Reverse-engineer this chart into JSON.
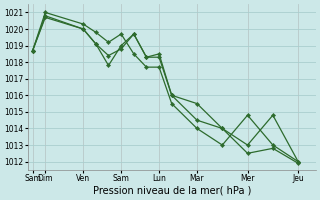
{
  "xlabel": "Pression niveau de la mer( hPa )",
  "bg_color": "#cce8e8",
  "grid_color": "#aacece",
  "line_color": "#2d6b2d",
  "marker_color": "#2d6b2d",
  "ylim": [
    1011.5,
    1021.5
  ],
  "ytick_values": [
    1012,
    1013,
    1014,
    1015,
    1016,
    1017,
    1018,
    1019,
    1020,
    1021
  ],
  "xtick_positions": [
    0.0,
    0.5,
    2.0,
    3.5,
    5.0,
    6.5,
    8.5,
    10.5
  ],
  "xtick_labels": [
    "Sam",
    "Dim",
    "Ven",
    "Sam",
    "Lun",
    "Mar",
    "Mer",
    "Jeu"
  ],
  "xlim": [
    -0.2,
    11.2
  ],
  "series": [
    {
      "x": [
        0.0,
        0.5,
        2.0,
        2.5,
        3.0,
        3.5,
        4.0,
        4.5,
        5.0,
        5.5,
        6.5,
        7.5,
        8.5,
        9.5,
        10.5
      ],
      "y": [
        1018.7,
        1021.0,
        1020.3,
        1019.8,
        1019.2,
        1019.7,
        1018.5,
        1017.7,
        1017.7,
        1015.5,
        1014.0,
        1013.0,
        1014.8,
        1013.0,
        1012.0
      ]
    },
    {
      "x": [
        0.0,
        0.5,
        2.0,
        2.5,
        3.0,
        3.5,
        4.0,
        4.5,
        5.0,
        5.5,
        6.5,
        7.5,
        8.5,
        9.5,
        10.5
      ],
      "y": [
        1018.7,
        1020.8,
        1020.0,
        1019.1,
        1018.4,
        1018.8,
        1019.7,
        1018.3,
        1018.3,
        1016.0,
        1015.5,
        1014.0,
        1012.5,
        1012.8,
        1011.9
      ]
    },
    {
      "x": [
        0.0,
        0.5,
        2.0,
        2.5,
        3.0,
        3.5,
        4.0,
        4.5,
        5.0,
        5.5,
        6.5,
        7.5,
        8.5,
        9.5,
        10.5
      ],
      "y": [
        1018.7,
        1020.7,
        1020.0,
        1019.1,
        1017.8,
        1019.0,
        1019.7,
        1018.3,
        1018.5,
        1016.0,
        1014.5,
        1014.0,
        1013.0,
        1014.8,
        1012.0
      ]
    }
  ],
  "vline_positions": [
    0.0,
    0.5,
    2.0,
    3.5,
    5.0,
    6.5,
    8.5,
    10.5
  ],
  "vline_color": "#b8c8c8",
  "xlabel_fontsize": 7,
  "tick_fontsize": 5.5
}
